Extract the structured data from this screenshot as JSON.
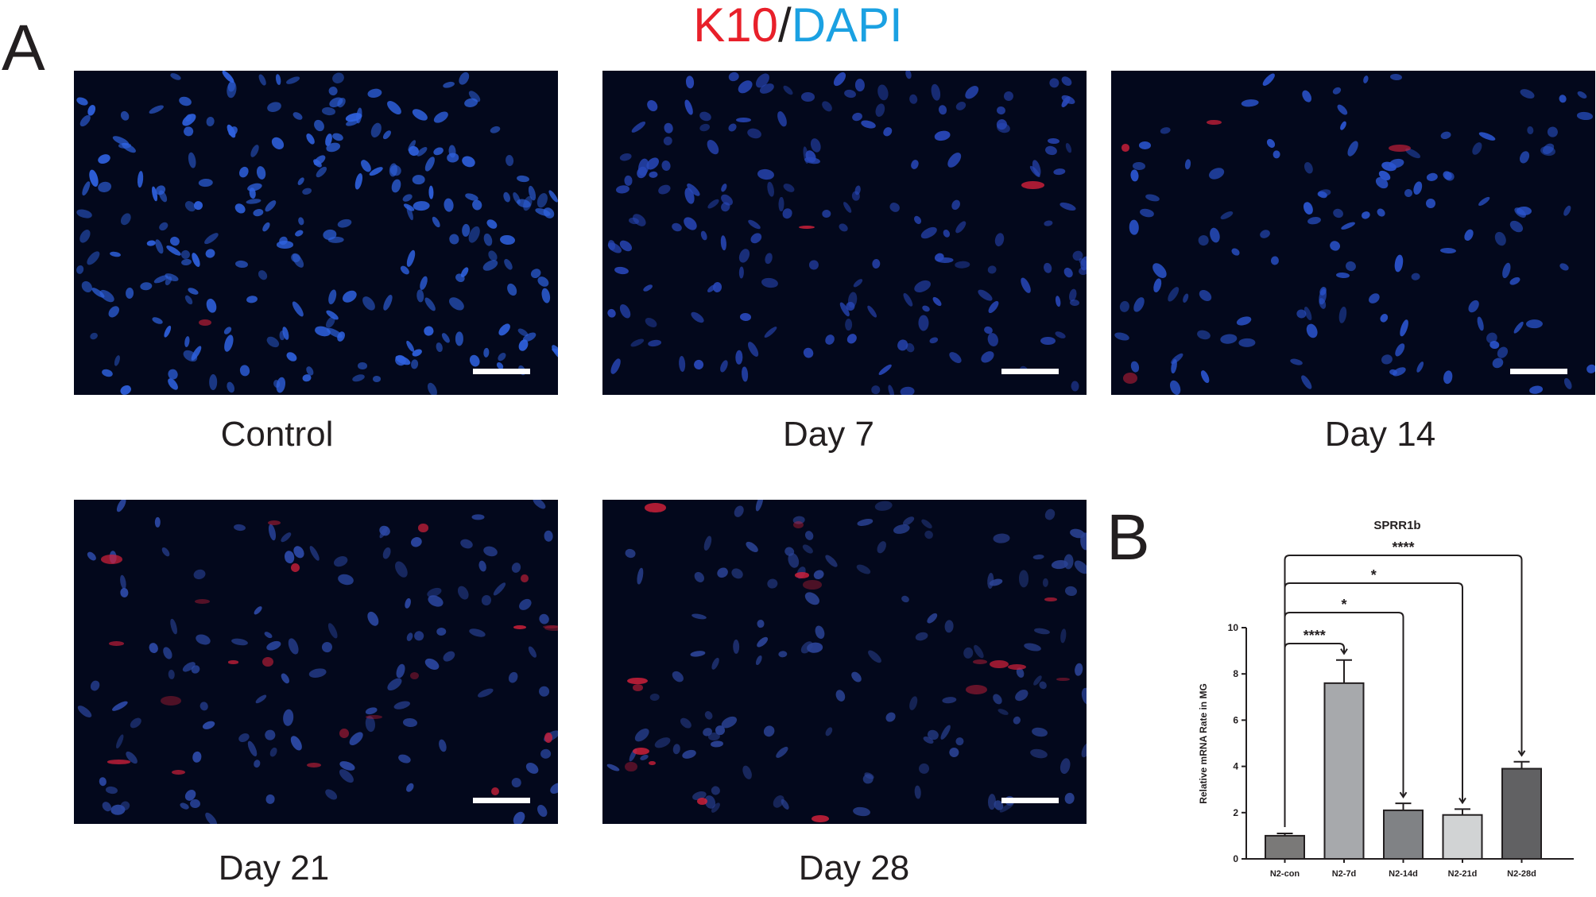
{
  "figure": {
    "title_parts": {
      "marker": "K10",
      "separator": "/",
      "stain": "DAPI"
    },
    "colors": {
      "marker": "#e8202a",
      "stain": "#1ba1e2",
      "text": "#231f20"
    }
  },
  "panel_a": {
    "letter": "A",
    "images": [
      {
        "caption": "Control",
        "red_level": 0.02
      },
      {
        "caption": "Day 7",
        "red_level": 0.03
      },
      {
        "caption": "Day 14",
        "red_level": 0.06
      },
      {
        "caption": "Day 21",
        "red_level": 0.35
      },
      {
        "caption": "Day 28",
        "red_level": 0.28
      }
    ]
  },
  "panel_b": {
    "letter": "B"
  },
  "chart_data": {
    "type": "bar",
    "title": "SPRR1b",
    "ylabel": "Relative mRNA Rate in MG",
    "xlabel": "",
    "categories": [
      "N2-con",
      "N2-7d",
      "N2-14d",
      "N2-21d",
      "N2-28d"
    ],
    "values": [
      1.0,
      7.6,
      2.1,
      1.9,
      3.9
    ],
    "errors": [
      0.1,
      1.0,
      0.3,
      0.25,
      0.3
    ],
    "bar_colors": [
      "#7a7978",
      "#a7a9ac",
      "#808285",
      "#d1d3d4",
      "#616163"
    ],
    "ylim": [
      0,
      10
    ],
    "yticks": [
      "0",
      "2",
      "4",
      "6",
      "8",
      "10"
    ],
    "significance": [
      {
        "from": "N2-con",
        "to": "N2-7d",
        "label": "****"
      },
      {
        "from": "N2-con",
        "to": "N2-14d",
        "label": "*"
      },
      {
        "from": "N2-con",
        "to": "N2-21d",
        "label": "*"
      },
      {
        "from": "N2-con",
        "to": "N2-28d",
        "label": "****"
      }
    ],
    "grid": false,
    "legend": "none"
  }
}
